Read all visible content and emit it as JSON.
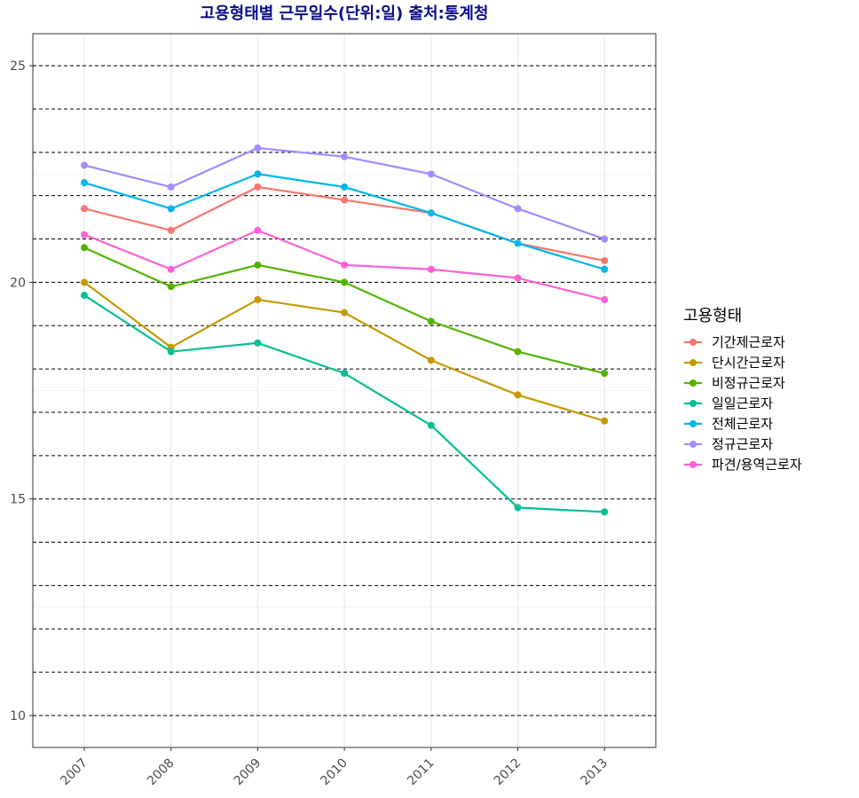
{
  "chart_data": {
    "type": "line",
    "title": "고용형태별 근무일수(단위:일) 출처:통계청",
    "xlabel": "",
    "ylabel": "",
    "categories": [
      "2007",
      "2008",
      "2009",
      "2010",
      "2011",
      "2012",
      "2013"
    ],
    "ylim": [
      9.3,
      25.75
    ],
    "y_ticks": [
      10,
      15,
      20,
      25
    ],
    "y_tick_labels": [
      "10",
      "15",
      "20",
      "25"
    ],
    "dashed_reference_lines": [
      10,
      11,
      12,
      13,
      14,
      15,
      16,
      17,
      18,
      19,
      20,
      21,
      22,
      23,
      24,
      25
    ],
    "grid": true,
    "legend": {
      "title": "고용형태",
      "position": "right"
    },
    "series": [
      {
        "name": "기간제근로자",
        "color": "#F8766D",
        "values": [
          21.7,
          21.2,
          22.2,
          21.9,
          21.6,
          20.9,
          20.5
        ]
      },
      {
        "name": "단시간근로자",
        "color": "#C49A00",
        "values": [
          20.0,
          18.5,
          19.6,
          19.3,
          18.2,
          17.4,
          16.8
        ]
      },
      {
        "name": "비정규근로자",
        "color": "#53B400",
        "values": [
          20.8,
          19.9,
          20.4,
          20.0,
          19.1,
          18.4,
          17.9
        ]
      },
      {
        "name": "일일근로자",
        "color": "#00C094",
        "values": [
          19.7,
          18.4,
          18.6,
          17.9,
          16.7,
          14.8,
          14.7
        ]
      },
      {
        "name": "전체근로자",
        "color": "#00B6EB",
        "values": [
          22.3,
          21.7,
          22.5,
          22.2,
          21.6,
          20.9,
          20.3
        ]
      },
      {
        "name": "정규근로자",
        "color": "#A58AFF",
        "values": [
          22.7,
          22.2,
          23.1,
          22.9,
          22.5,
          21.7,
          21.0
        ]
      },
      {
        "name": "파견/용역근로자",
        "color": "#FB61D7",
        "values": [
          21.1,
          20.3,
          21.2,
          20.4,
          20.3,
          20.1,
          19.6
        ]
      }
    ]
  }
}
